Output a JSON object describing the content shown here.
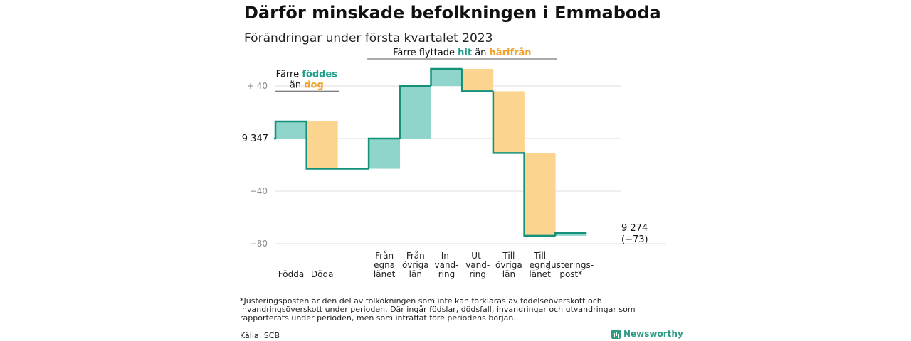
{
  "header": {
    "title": "Därför minskade befolkningen i Emmaboda",
    "subtitle": "Förändringar under första kvartalet 2023"
  },
  "chart_data": {
    "type": "waterfall",
    "start_value": 9347,
    "y_ticks": [
      {
        "value": 40,
        "label": "+ 40"
      },
      {
        "value": 0,
        "label": ""
      },
      {
        "value": -40,
        "label": "−40"
      },
      {
        "value": -80,
        "label": "−80"
      }
    ],
    "ylim": [
      -86,
      55
    ],
    "steps": [
      {
        "label": "Födda",
        "change": 13,
        "kind": "positive"
      },
      {
        "label": "Döda",
        "change": -36,
        "kind": "negative"
      },
      {
        "label": "",
        "change": 0,
        "kind": "gap"
      },
      {
        "label": "Från egna länet",
        "label_lines": [
          "Från",
          "egna",
          "länet"
        ],
        "change": 23,
        "kind": "positive"
      },
      {
        "label": "Från övriga län",
        "label_lines": [
          "Från",
          "övriga",
          "län"
        ],
        "change": 40,
        "kind": "positive"
      },
      {
        "label": "Invandring",
        "label_lines": [
          "In-",
          "vand-",
          "ring"
        ],
        "change": 13,
        "kind": "positive"
      },
      {
        "label": "Utvandring",
        "label_lines": [
          "Ut-",
          "vand-",
          "ring"
        ],
        "change": -17,
        "kind": "negative"
      },
      {
        "label": "Till övriga län",
        "label_lines": [
          "Till",
          "övriga",
          "län"
        ],
        "change": -47,
        "kind": "negative"
      },
      {
        "label": "Till egna länet",
        "label_lines": [
          "Till",
          "egna",
          "länet"
        ],
        "change": -63,
        "kind": "negative"
      },
      {
        "label": "Justeringspost*",
        "label_lines": [
          "Justerings-",
          "post*"
        ],
        "change": 2,
        "kind": "positive"
      }
    ],
    "start_label": "9 347",
    "end_label": "9 274",
    "end_change_label": "(−73)",
    "annotations": [
      {
        "parts": [
          [
            "Färre ",
            "plain"
          ],
          [
            "föddes",
            "pos"
          ]
        ],
        "parts2": [
          [
            "än ",
            "plain"
          ],
          [
            "dog",
            "neg"
          ]
        ],
        "over": [
          0,
          1
        ],
        "y": 35
      },
      {
        "parts": [
          [
            "Färre flyttade ",
            "plain"
          ],
          [
            "hit",
            "pos"
          ],
          [
            " än ",
            "plain"
          ],
          [
            "härifrån",
            "neg"
          ]
        ],
        "over": [
          3,
          8
        ],
        "y": 60
      }
    ],
    "colors": {
      "positive_fill": "#8fd5cb",
      "negative_fill": "#fbd590",
      "positive_text": "#1f9e8a",
      "negative_text": "#f0a22c",
      "line": "#14917a",
      "grid": "#dddddd",
      "tick": "#8a8a8a"
    }
  },
  "footnote": "*Justeringsposten är den del av folkökningen som inte kan förklaras av födelseöverskott och invandringsöverskott under perioden. Där ingår födslar, dödsfall, invandringar och utvandringar som rapporterats under perioden, men som inträffat före periodens början.",
  "source": "Källa: SCB",
  "brand": {
    "name": "Newsworthy",
    "icon": "newsworthy-bar-icon"
  }
}
